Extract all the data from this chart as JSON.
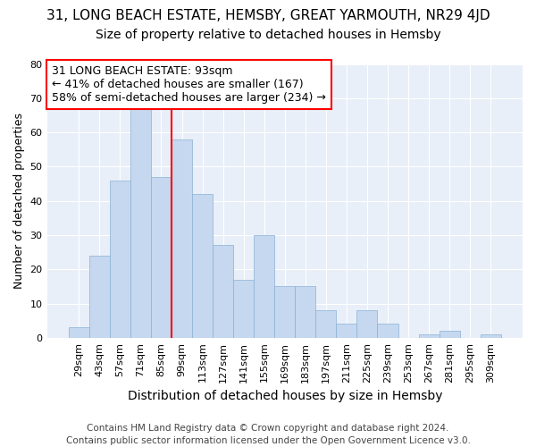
{
  "title": "31, LONG BEACH ESTATE, HEMSBY, GREAT YARMOUTH, NR29 4JD",
  "subtitle": "Size of property relative to detached houses in Hemsby",
  "xlabel": "Distribution of detached houses by size in Hemsby",
  "ylabel": "Number of detached properties",
  "categories": [
    "29sqm",
    "43sqm",
    "57sqm",
    "71sqm",
    "85sqm",
    "99sqm",
    "113sqm",
    "127sqm",
    "141sqm",
    "155sqm",
    "169sqm",
    "183sqm",
    "197sqm",
    "211sqm",
    "225sqm",
    "239sqm",
    "253sqm",
    "267sqm",
    "281sqm",
    "295sqm",
    "309sqm"
  ],
  "values": [
    3,
    24,
    46,
    67,
    47,
    58,
    42,
    27,
    17,
    30,
    15,
    15,
    8,
    4,
    8,
    4,
    0,
    1,
    2,
    0,
    1
  ],
  "bar_color": "#c5d8ef",
  "bar_edge_color": "#8ab0d4",
  "vline_color": "red",
  "vline_x_index": 5,
  "annotation_text": "31 LONG BEACH ESTATE: 93sqm\n← 41% of detached houses are smaller (167)\n58% of semi-detached houses are larger (234) →",
  "annotation_box_facecolor": "white",
  "annotation_box_edgecolor": "red",
  "footer": "Contains HM Land Registry data © Crown copyright and database right 2024.\nContains public sector information licensed under the Open Government Licence v3.0.",
  "ylim": [
    0,
    80
  ],
  "fig_facecolor": "#ffffff",
  "ax_facecolor": "#e8eff8",
  "grid_color": "#ffffff",
  "title_fontsize": 11,
  "subtitle_fontsize": 10,
  "ylabel_fontsize": 9,
  "xlabel_fontsize": 10,
  "tick_fontsize": 8,
  "annotation_fontsize": 9,
  "footer_fontsize": 7.5
}
